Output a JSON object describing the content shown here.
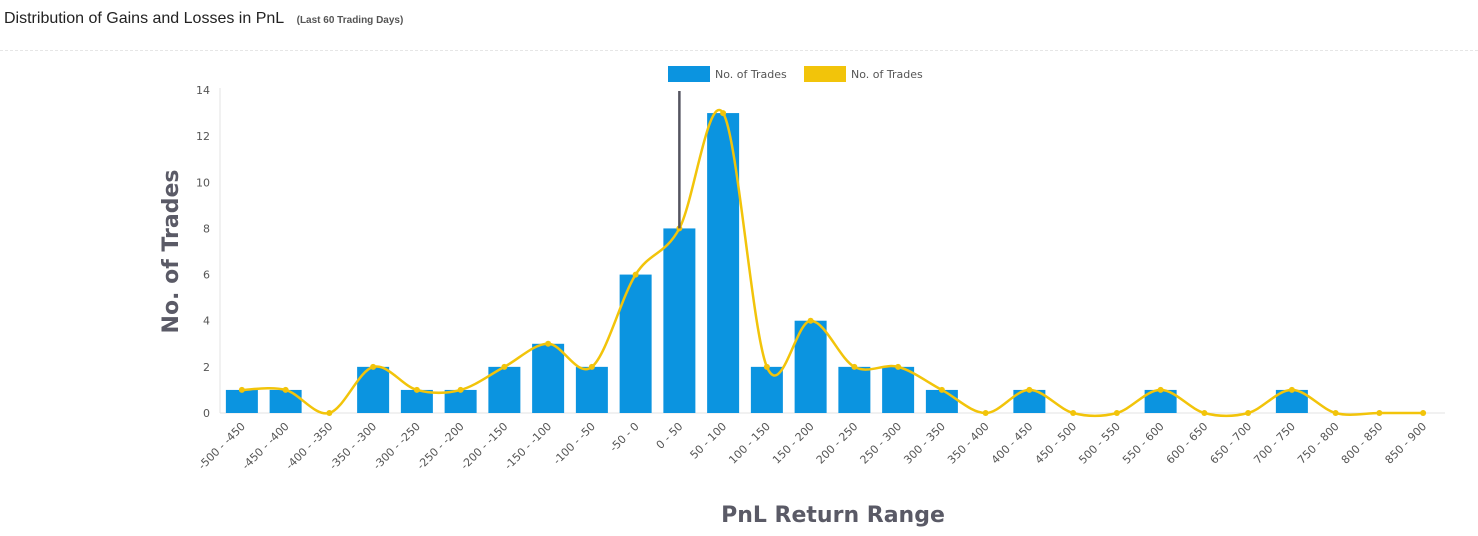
{
  "page": {
    "title": "Distribution of Gains and Losses in PnL",
    "subtitle": "(Last 60 Trading Days)"
  },
  "chart_data": {
    "type": "bar",
    "categories": [
      "-500 - -450",
      "-450 - -400",
      "-400 - -350",
      "-350 - -300",
      "-300 - -250",
      "-250 - -200",
      "-200 - -150",
      "-150 - -100",
      "-100 - -50",
      "-50 - 0",
      "0 - 50",
      "50 - 100",
      "100 - 150",
      "150 - 200",
      "200 - 250",
      "250 - 300",
      "300 - 350",
      "350 - 400",
      "400 - 450",
      "450 - 500",
      "500 - 550",
      "550 - 600",
      "600 - 650",
      "650 - 700",
      "700 - 750",
      "750 - 800",
      "800 - 850",
      "850 - 900"
    ],
    "series": [
      {
        "name": "No. of Trades",
        "type": "bar",
        "color": "#0b94e0",
        "values": [
          1,
          1,
          0,
          2,
          1,
          1,
          2,
          3,
          2,
          6,
          8,
          13,
          2,
          4,
          2,
          2,
          1,
          0,
          1,
          0,
          0,
          1,
          0,
          0,
          1,
          0,
          0,
          0
        ]
      },
      {
        "name": "No. of Trades",
        "type": "spline",
        "color": "#f2c40a",
        "values": [
          1,
          1,
          0,
          2,
          1,
          1,
          2,
          3,
          2,
          6,
          8,
          13,
          2,
          4,
          2,
          2,
          1,
          0,
          1,
          0,
          0,
          1,
          0,
          0,
          1,
          0,
          0,
          0
        ]
      }
    ],
    "xlabel": "PnL Return Range",
    "ylabel": "No. of Trades",
    "ylim": [
      0,
      14
    ],
    "yticks": [
      0,
      2,
      4,
      6,
      8,
      10,
      12,
      14
    ],
    "legend_position": "top-center",
    "grid": false,
    "annotation": {
      "category": "0 - 50",
      "marker": "vertical line",
      "color": "#555560"
    }
  }
}
